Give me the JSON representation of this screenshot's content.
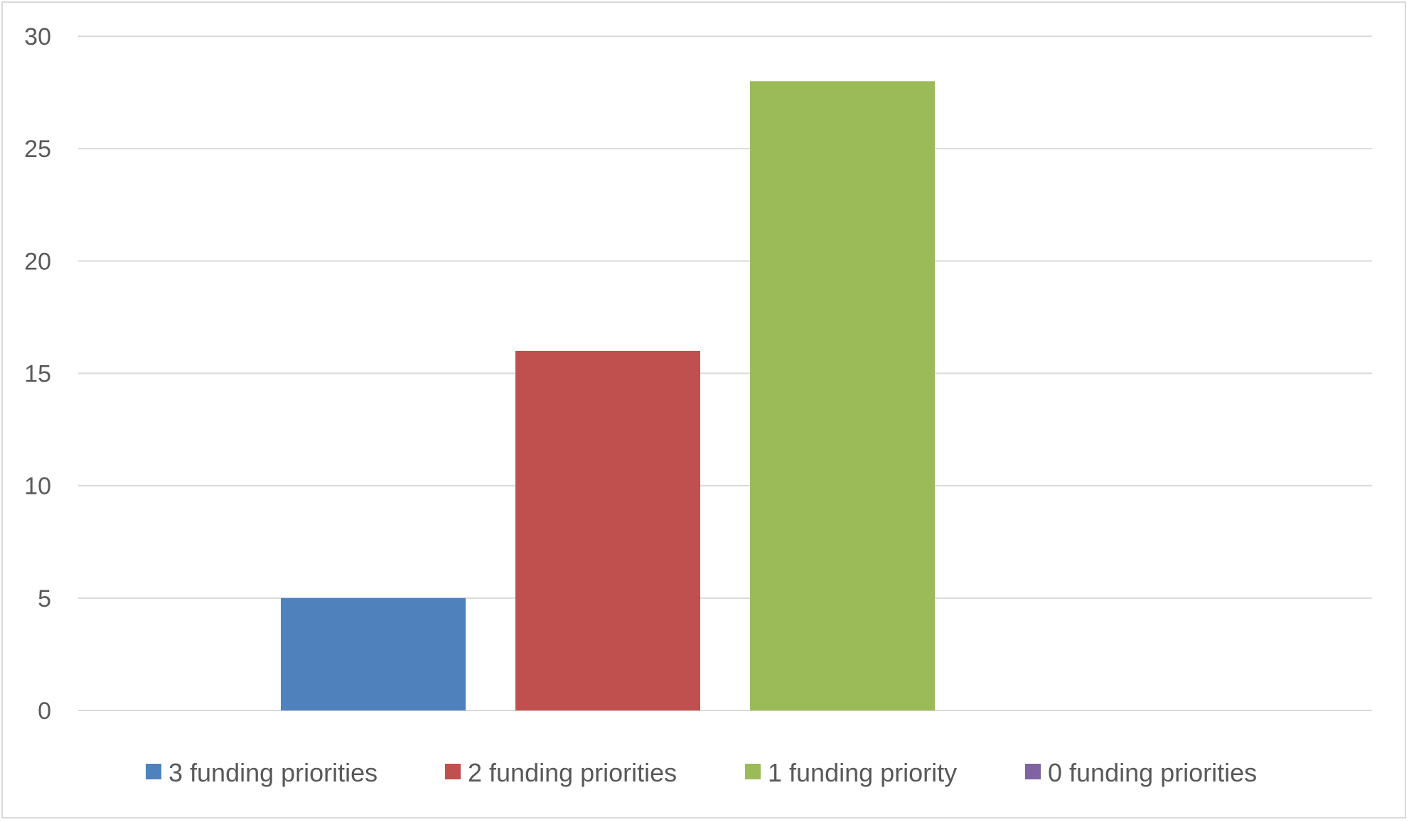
{
  "chart_data": {
    "type": "bar",
    "title": "",
    "xlabel": "",
    "ylabel": "",
    "ylim": [
      0,
      30
    ],
    "yticks": [
      0,
      5,
      10,
      15,
      20,
      25,
      30
    ],
    "grid": true,
    "legend_position": "bottom",
    "series": [
      {
        "name": "3 funding priorities",
        "value": 5,
        "color": "#4F81BD"
      },
      {
        "name": "2 funding priorities",
        "value": 16,
        "color": "#C0504D"
      },
      {
        "name": "1 funding priority",
        "value": 28,
        "color": "#9BBB59"
      },
      {
        "name": "0 funding priorities",
        "value": 0,
        "color": "#8064A2"
      }
    ]
  }
}
